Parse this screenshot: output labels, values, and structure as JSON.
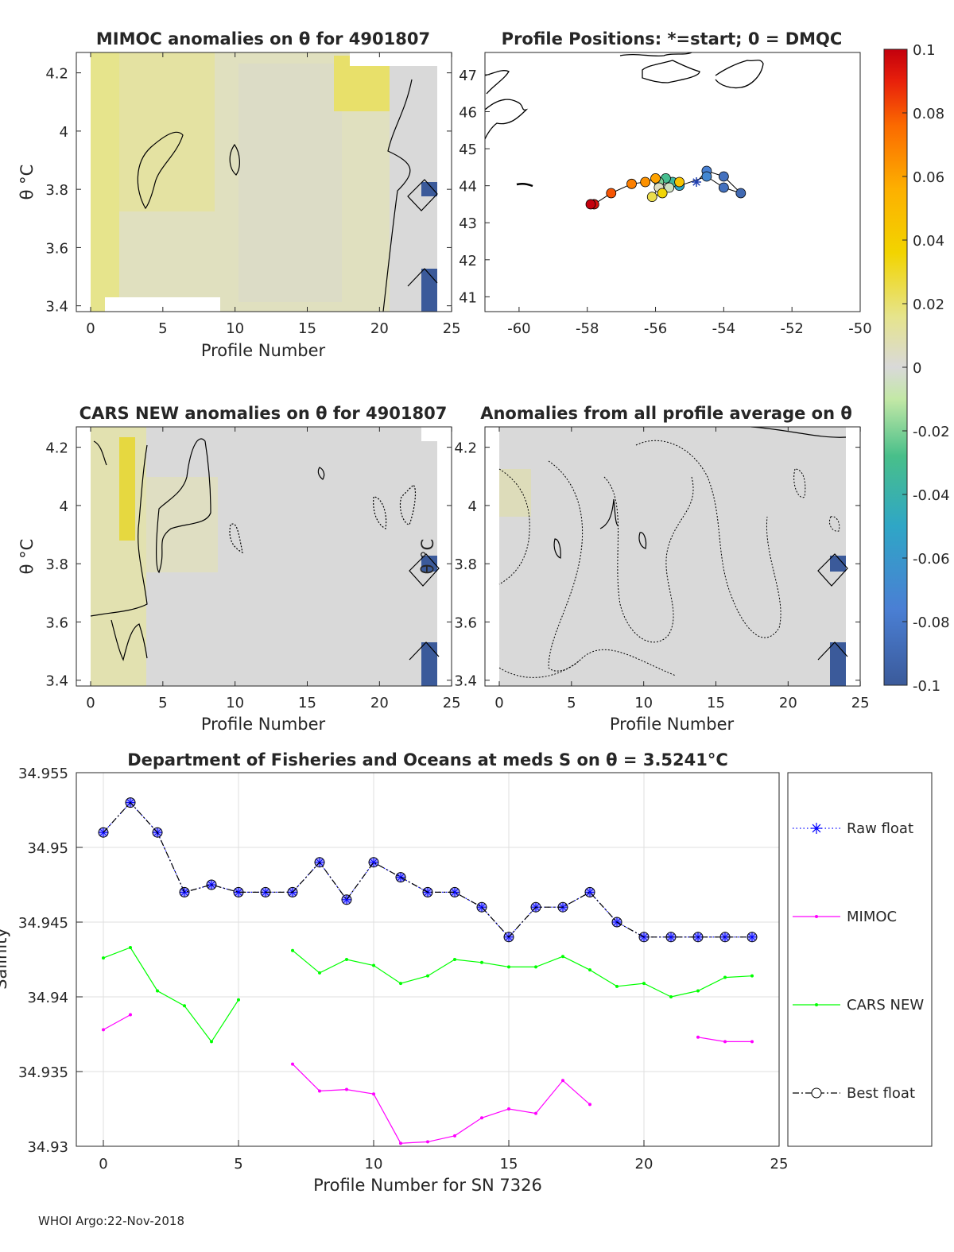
{
  "footer": "WHOI Argo:22-Nov-2018",
  "colors": {
    "raw": "#0000ff",
    "raw_marker": "#8080ff",
    "mimoc": "#ff00ff",
    "cars": "#00ff00",
    "best": "#000000",
    "grid": "#dfdfdf",
    "neutral": "#d9d9d9",
    "yellow": "#e6e48c",
    "deep_blue": "#3b5a9a"
  },
  "panels": {
    "mimoc": {
      "title": "MIMOC anomalies on θ  for 4901807",
      "ylabel": "θ °C",
      "xlabel": "Profile Number",
      "xticks": [
        "0",
        "5",
        "10",
        "15",
        "20",
        "25"
      ],
      "yticks": [
        "3.4",
        "3.6",
        "3.8",
        "4",
        "4.2"
      ]
    },
    "map": {
      "title": "Profile Positions: *=start; 0 = DMQC",
      "xticks": [
        "-60",
        "-58",
        "-56",
        "-54",
        "-52",
        "-50"
      ],
      "yticks": [
        "41",
        "42",
        "43",
        "44",
        "45",
        "46",
        "47"
      ]
    },
    "cars": {
      "title": "CARS NEW anomalies on θ for 4901807",
      "ylabel": "θ °C",
      "xlabel": "Profile Number",
      "xticks": [
        "0",
        "5",
        "10",
        "15",
        "20",
        "25"
      ],
      "yticks": [
        "3.4",
        "3.6",
        "3.8",
        "4",
        "4.2"
      ]
    },
    "avg": {
      "title": "Anomalies from all profile average on θ",
      "ylabel": "θ °C",
      "xlabel": "Profile Number",
      "xticks": [
        "0",
        "5",
        "10",
        "15",
        "20",
        "25"
      ],
      "yticks": [
        "3.4",
        "3.6",
        "3.8",
        "4",
        "4.2"
      ]
    },
    "colorbar": {
      "ticks": [
        "0.1",
        "0.08",
        "0.06",
        "0.04",
        "0.02",
        "0",
        "-0.02",
        "-0.04",
        "-0.06",
        "-0.08",
        "-0.1"
      ]
    }
  },
  "chart_data": [
    {
      "type": "line",
      "title": "Department of Fisheries and Oceans at meds S on θ = 3.5241°C",
      "xlabel": "Profile Number for SN 7326",
      "ylabel": "Salinity",
      "xlim": [
        -1,
        25
      ],
      "ylim": [
        34.93,
        34.955
      ],
      "xticks": [
        "0",
        "5",
        "10",
        "15",
        "20",
        "25"
      ],
      "yticks": [
        "34.93",
        "34.935",
        "34.94",
        "34.945",
        "34.95",
        "34.955"
      ],
      "x": [
        0,
        1,
        2,
        3,
        4,
        5,
        6,
        7,
        8,
        9,
        10,
        11,
        12,
        13,
        14,
        15,
        16,
        17,
        18,
        19,
        20,
        21,
        22,
        23,
        24
      ],
      "series": [
        {
          "name": "Raw float",
          "values": [
            34.951,
            34.953,
            34.951,
            34.947,
            34.9475,
            34.947,
            34.947,
            34.947,
            34.949,
            34.9465,
            34.949,
            34.948,
            34.947,
            34.947,
            34.946,
            34.944,
            34.946,
            34.946,
            34.947,
            34.945,
            34.944,
            34.944,
            34.944,
            34.944,
            34.944
          ]
        },
        {
          "name": "MIMOC",
          "values": [
            34.9378,
            34.9388,
            null,
            null,
            null,
            null,
            null,
            34.9355,
            34.9337,
            34.9338,
            34.9335,
            34.9302,
            34.9303,
            34.9307,
            34.9319,
            34.9325,
            34.9322,
            34.9344,
            34.9328,
            null,
            null,
            null,
            34.9373,
            34.937,
            34.937
          ]
        },
        {
          "name": "CARS NEW",
          "values": [
            34.9426,
            34.9433,
            34.9404,
            34.9394,
            34.937,
            34.9398,
            null,
            34.9431,
            34.9416,
            34.9425,
            34.9421,
            34.9409,
            34.9414,
            34.9425,
            34.9423,
            34.942,
            34.942,
            34.9427,
            34.9418,
            34.9407,
            34.9409,
            34.94,
            34.9404,
            34.9413,
            34.9414
          ]
        },
        {
          "name": "Best float",
          "values": [
            34.951,
            34.953,
            34.951,
            34.947,
            34.9475,
            34.947,
            34.947,
            34.947,
            34.949,
            34.9465,
            34.949,
            34.948,
            34.947,
            34.947,
            34.946,
            34.944,
            34.946,
            34.946,
            34.947,
            34.945,
            34.944,
            34.944,
            34.944,
            34.944,
            34.944
          ]
        }
      ],
      "legend": [
        "Raw float",
        "MIMOC",
        "CARS NEW",
        "Best float"
      ],
      "legend_position": "outside-right"
    },
    {
      "type": "scatter",
      "title": "Profile Positions: *=start; 0 = DMQC",
      "xlim": [
        -61,
        -50
      ],
      "ylim": [
        40.6,
        47.6
      ],
      "colormap_range": [
        -0.1,
        0.1
      ],
      "points": [
        {
          "lon": -54.8,
          "lat": 44.1,
          "v": -0.01,
          "start": true
        },
        {
          "lon": -54.5,
          "lat": 44.4,
          "v": -0.075
        },
        {
          "lon": -54.0,
          "lat": 44.25,
          "v": -0.085
        },
        {
          "lon": -53.5,
          "lat": 43.8,
          "v": -0.09
        },
        {
          "lon": -54.0,
          "lat": 43.95,
          "v": -0.085
        },
        {
          "lon": -54.5,
          "lat": 44.25,
          "v": -0.07
        },
        {
          "lon": -55.3,
          "lat": 44.0,
          "v": -0.05
        },
        {
          "lon": -55.5,
          "lat": 44.1,
          "v": -0.035
        },
        {
          "lon": -55.7,
          "lat": 44.2,
          "v": -0.03
        },
        {
          "lon": -55.9,
          "lat": 44.1,
          "v": -0.02
        },
        {
          "lon": -55.6,
          "lat": 43.95,
          "v": -0.005
        },
        {
          "lon": -55.9,
          "lat": 43.95,
          "v": 0.005
        },
        {
          "lon": -56.1,
          "lat": 43.7,
          "v": 0.025
        },
        {
          "lon": -55.8,
          "lat": 43.8,
          "v": 0.035
        },
        {
          "lon": -55.3,
          "lat": 44.1,
          "v": 0.045
        },
        {
          "lon": -56.0,
          "lat": 44.2,
          "v": 0.06
        },
        {
          "lon": -56.3,
          "lat": 44.1,
          "v": 0.065
        },
        {
          "lon": -56.7,
          "lat": 44.05,
          "v": 0.07
        },
        {
          "lon": -57.3,
          "lat": 43.8,
          "v": 0.08
        },
        {
          "lon": -57.8,
          "lat": 43.5,
          "v": 0.095
        },
        {
          "lon": -57.9,
          "lat": 43.5,
          "v": 0.1
        }
      ]
    }
  ]
}
